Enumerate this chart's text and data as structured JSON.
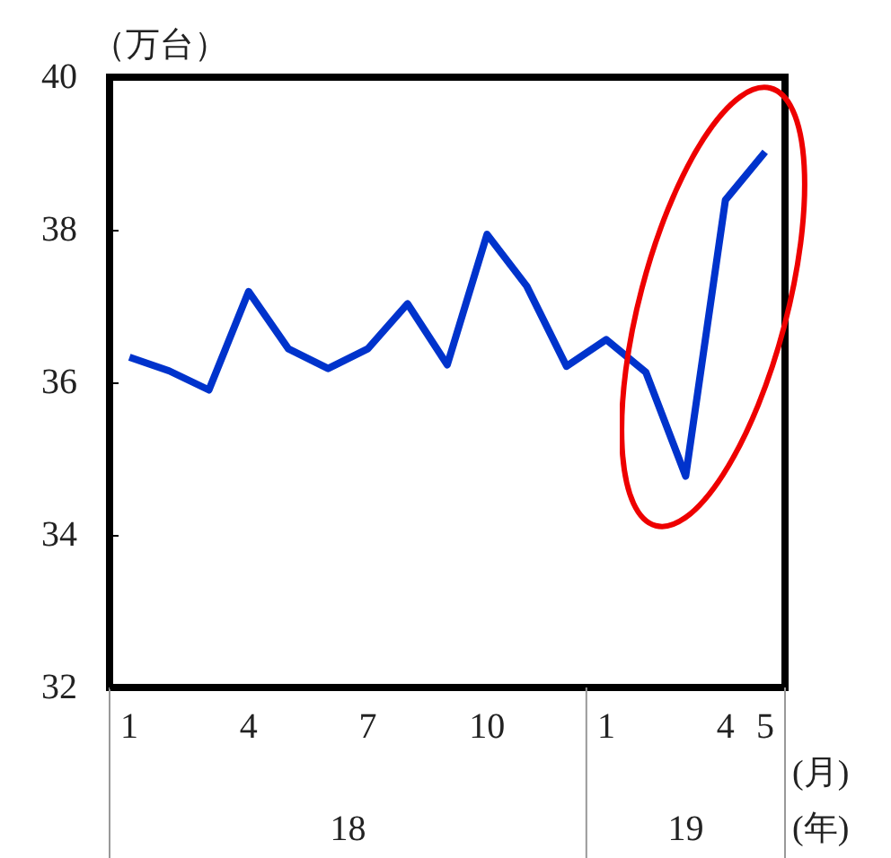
{
  "chart_data": {
    "type": "line",
    "ylabel": "（万台）",
    "xlabel": "(月)",
    "categories": [
      "1",
      null,
      null,
      "4",
      null,
      null,
      "7",
      null,
      null,
      "10",
      null,
      null,
      "1",
      null,
      null,
      "4",
      "5"
    ],
    "series": [
      {
        "color": "#0033cc",
        "values": [
          36.33,
          36.15,
          35.9,
          37.19,
          36.44,
          36.18,
          36.44,
          37.03,
          36.23,
          37.94,
          37.26,
          36.21,
          36.56,
          36.13,
          34.77,
          38.39,
          39.02
        ]
      }
    ],
    "ylim": [
      32,
      40
    ],
    "yticks": [
      32,
      34,
      36,
      38,
      40
    ],
    "grid": false,
    "marker": "none",
    "line_style": "solid",
    "annotations": [
      "18",
      "19",
      "(年)"
    ]
  }
}
